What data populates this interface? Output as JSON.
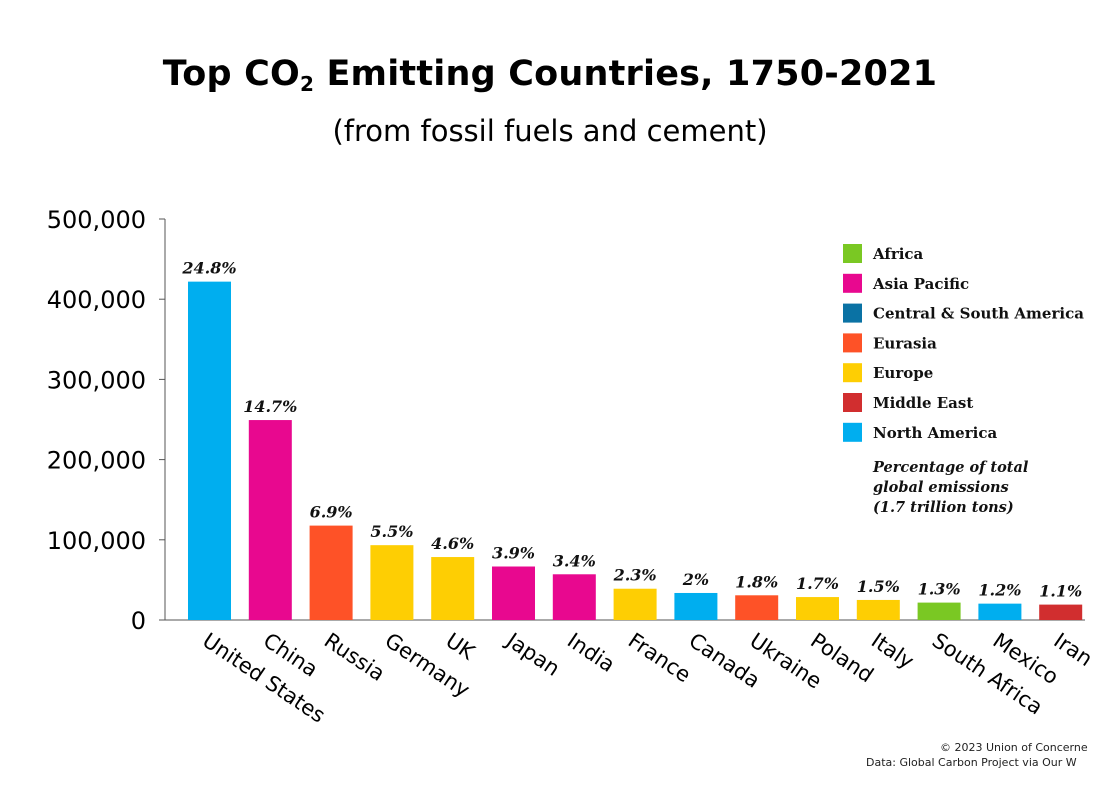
{
  "header": {
    "title_main": "Top CO",
    "title_sub": "2",
    "title_rest": " Emitting Countries, 1750-2021",
    "subtitle": "(from fossil fuels and cement)"
  },
  "chart_data": {
    "type": "bar",
    "title": "Top CO2 Emitting Countries, 1750-2021",
    "subtitle": "(from fossil fuels and cement)",
    "xlabel": "",
    "ylabel": "",
    "ylim": [
      0,
      500000
    ],
    "yticks": [
      0,
      100000,
      200000,
      300000,
      400000,
      500000
    ],
    "ytick_labels": [
      "0",
      "100,000",
      "200,000",
      "300,000",
      "400,000",
      "500,000"
    ],
    "grid": false,
    "legend_position": "top-right",
    "categories": [
      "United States",
      "China",
      "Russia",
      "Germany",
      "UK",
      "Japan",
      "India",
      "France",
      "Canada",
      "Ukraine",
      "Poland",
      "Italy",
      "South Africa",
      "Mexico",
      "Iran"
    ],
    "values": [
      421900,
      249300,
      117700,
      93300,
      78500,
      66700,
      57000,
      39000,
      33700,
      30800,
      28600,
      25000,
      21700,
      20400,
      19200
    ],
    "data_labels": [
      "24.8%",
      "14.7%",
      "6.9%",
      "5.5%",
      "4.6%",
      "3.9%",
      "3.4%",
      "2.3%",
      "2%",
      "1.8%",
      "1.7%",
      "1.5%",
      "1.3%",
      "1.2%",
      "1.1%"
    ],
    "regions": [
      "North America",
      "Asia Pacific",
      "Eurasia",
      "Europe",
      "Europe",
      "Asia Pacific",
      "Asia Pacific",
      "Europe",
      "North America",
      "Eurasia",
      "Europe",
      "Europe",
      "Africa",
      "North America",
      "Middle East"
    ],
    "legend": [
      {
        "name": "Africa",
        "color": "#7ac823"
      },
      {
        "name": "Asia Pacific",
        "color": "#e8088f"
      },
      {
        "name": "Central & South America",
        "color": "#0a72a4"
      },
      {
        "name": "Eurasia",
        "color": "#fe5227"
      },
      {
        "name": "Europe",
        "color": "#fece03"
      },
      {
        "name": "Middle East",
        "color": "#d12e2f"
      },
      {
        "name": "North America",
        "color": "#00aeef"
      }
    ],
    "legend_note": [
      "Percentage of total",
      "global emissions",
      "(1.7 trillion tons)"
    ]
  },
  "footer": {
    "credit_line1": "© 2023 Union of Concerne",
    "credit_line2": "Data: Global Carbon Project via Our W"
  }
}
